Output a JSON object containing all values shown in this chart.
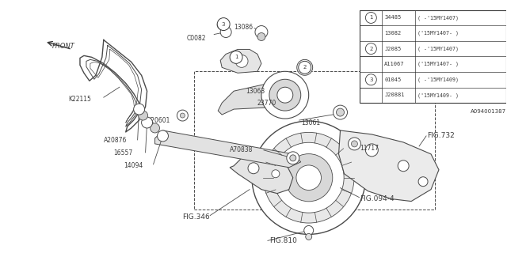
{
  "background_color": "#ffffff",
  "fig_width": 6.4,
  "fig_height": 3.2,
  "dpi": 100,
  "line_color": "#4a4a4a",
  "text_color": "#3a3a3a",
  "table": {
    "rows": [
      {
        "circle": "1",
        "part": "34485",
        "note": "( -'15MY1407)"
      },
      {
        "circle": "",
        "part": "13082",
        "note": "('15MY1407- )"
      },
      {
        "circle": "2",
        "part": "J2085",
        "note": "( -'15MY1407)"
      },
      {
        "circle": "",
        "part": "A11067",
        "note": "('15MY1407- )"
      },
      {
        "circle": "3",
        "part": "01045",
        "note": "( -'15MY1409)"
      },
      {
        "circle": "",
        "part": "J20881",
        "note": "('15MY1409- )"
      }
    ],
    "footer": "A094001387"
  }
}
